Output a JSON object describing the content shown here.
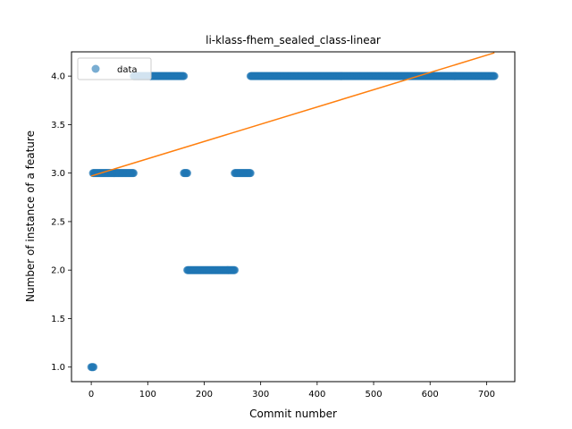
{
  "chart_data": {
    "type": "scatter",
    "title": "li-klass-fhem_sealed_class-linear",
    "xlabel": "Commit number",
    "ylabel": "Number of instance of a feature",
    "xlim": [
      -35,
      750
    ],
    "ylim": [
      0.85,
      4.25
    ],
    "xticks": [
      0,
      100,
      200,
      300,
      400,
      500,
      600,
      700
    ],
    "yticks": [
      1.0,
      1.5,
      2.0,
      2.5,
      3.0,
      3.5,
      4.0
    ],
    "ytick_labels": [
      "1.0",
      "1.5",
      "2.0",
      "2.5",
      "3.0",
      "3.5",
      "4.0"
    ],
    "grid": false,
    "legend": {
      "position": "upper-left",
      "entries": [
        "data"
      ]
    },
    "series": [
      {
        "name": "data",
        "kind": "scatter",
        "color": "#1f77b4",
        "alpha": 0.6,
        "segments": [
          {
            "x_start": 0,
            "x_end": 4,
            "y": 1
          },
          {
            "x_start": 3,
            "x_end": 75,
            "y": 3
          },
          {
            "x_start": 75,
            "x_end": 164,
            "y": 4
          },
          {
            "x_start": 164,
            "x_end": 170,
            "y": 3
          },
          {
            "x_start": 170,
            "x_end": 254,
            "y": 2
          },
          {
            "x_start": 254,
            "x_end": 282,
            "y": 3
          },
          {
            "x_start": 282,
            "x_end": 714,
            "y": 4
          }
        ]
      },
      {
        "kind": "line",
        "color": "#ff7f0e",
        "x": [
          0,
          714
        ],
        "y": [
          2.97,
          4.24
        ]
      }
    ]
  }
}
